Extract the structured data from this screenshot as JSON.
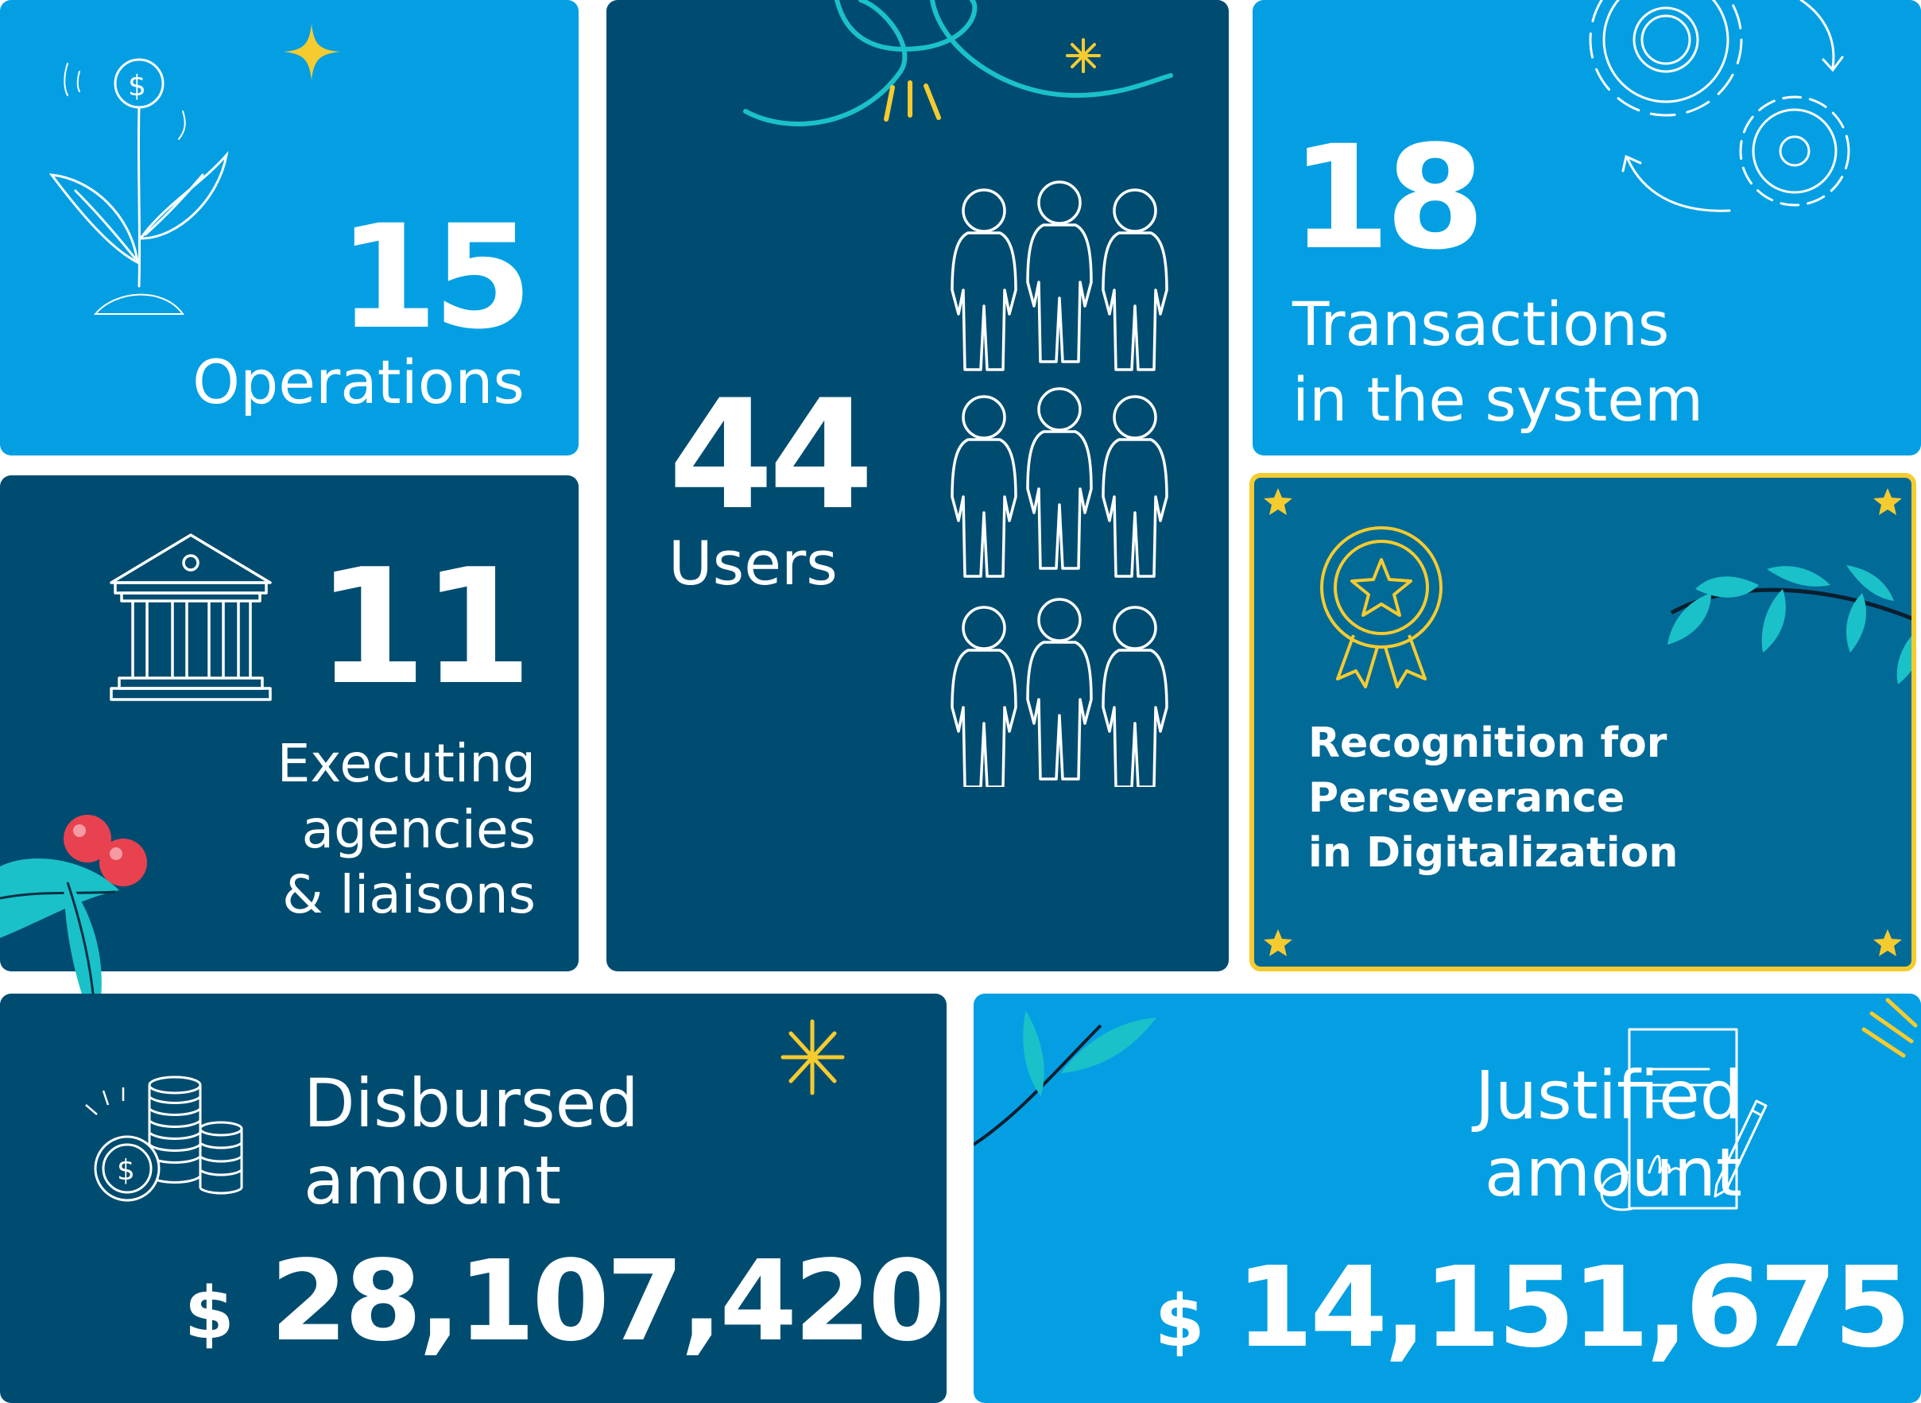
{
  "colors": {
    "light_blue": "#049FE3",
    "dark_blue": "#004C70",
    "mid_blue": "#026A97",
    "gold": "#F6CB2F",
    "teal": "#1BC1C9",
    "berry_red": "#E84250"
  },
  "operations": {
    "value": "15",
    "label": "Operations",
    "icon": "money-plant-icon"
  },
  "users": {
    "value": "44",
    "label": "Users",
    "icon": "people-group-icon"
  },
  "transactions": {
    "value": "18",
    "label": "Transactions\nin the system",
    "icon": "gears-cycle-icon"
  },
  "agencies": {
    "value": "11",
    "label": "Executing\nagencies\n& liaisons",
    "icon": "bank-building-icon"
  },
  "recognition": {
    "label": "Recognition for\nPerseverance\nin Digitalization",
    "icon": "medal-star-icon"
  },
  "disbursed": {
    "label": "Disbursed\namount",
    "currency": "$",
    "value": "28,107,420",
    "icon": "coin-stacks-icon"
  },
  "justified": {
    "label": "Justified\namount",
    "currency": "$",
    "value": "14,151,675",
    "icon": "signed-document-icon"
  }
}
